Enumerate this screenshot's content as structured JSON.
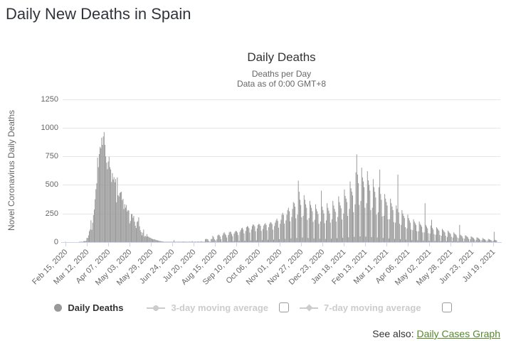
{
  "page": {
    "title": "Daily New Deaths in Spain"
  },
  "chart": {
    "title": "Daily Deaths",
    "subtitle1": "Deaths per Day",
    "subtitle2": "Data as of 0:00 GMT+8",
    "y_axis_title": "Novel Coronavirus Daily Deaths"
  },
  "legend": {
    "daily_deaths_label": "Daily Deaths",
    "ma3_label": "3-day moving average",
    "ma7_label": "7-day moving average",
    "ma3_checked": false,
    "ma7_checked": false
  },
  "see_also": {
    "text": "See also:",
    "link_label": "Daily Cases Graph"
  },
  "colors": {
    "bar": "#9a9a9a",
    "grid": "#e6e6e6",
    "axis": "#ccd6eb",
    "tick_text": "#666666",
    "title_text": "#333333",
    "disabled_legend": "#cccccc",
    "link_green": "#55882b"
  },
  "chart_data": {
    "type": "bar",
    "title": "Daily Deaths",
    "subtitle": "Deaths per Day — Data as of 0:00 GMT+8",
    "xlabel": "",
    "ylabel": "Novel Coronavirus Daily Deaths",
    "ylim": [
      0,
      1250
    ],
    "y_ticks": [
      0,
      250,
      500,
      750,
      1000,
      1250
    ],
    "grid": true,
    "legend_position": "bottom",
    "series_name": "Daily Deaths",
    "start_date": "Feb 15, 2020",
    "end_date": "Jul 23, 2021",
    "x_tick_interval_days": 26,
    "x_tick_labels": [
      "Feb 15, 2020",
      "Mar 12, 2020",
      "Apr 07, 2020",
      "May 03, 2020",
      "May 29, 2020",
      "Jun 24, 2020",
      "Jul 20, 2020",
      "Aug 15, 2020",
      "Sep 10, 2020",
      "Oct 06, 2020",
      "Nov 01, 2020",
      "Nov 27, 2020",
      "Dec 23, 2020",
      "Jan 18, 2021",
      "Feb 13, 2021",
      "Mar 11, 2021",
      "Apr 06, 2021",
      "May 02, 2021",
      "May 28, 2021",
      "Jun 23, 2021",
      "Jul 19, 2021"
    ],
    "values": [
      1,
      0,
      0,
      0,
      0,
      0,
      0,
      0,
      0,
      0,
      0,
      0,
      0,
      0,
      0,
      0,
      0,
      1,
      2,
      1,
      4,
      2,
      7,
      11,
      7,
      12,
      37,
      36,
      59,
      96,
      110,
      191,
      108,
      169,
      236,
      285,
      375,
      462,
      514,
      738,
      655,
      769,
      832,
      821,
      913,
      849,
      923,
      961,
      850,
      749,
      694,
      637,
      704,
      747,
      655,
      634,
      525,
      603,
      547,
      567,
      523,
      551,
      348,
      565,
      410,
      399,
      430,
      435,
      440,
      367,
      378,
      288,
      331,
      301,
      325,
      268,
      281,
      276,
      164,
      185,
      244,
      246,
      213,
      229,
      179,
      143,
      123,
      176,
      184,
      217,
      138,
      104,
      87,
      59,
      83,
      110,
      48,
      56,
      48,
      70,
      50,
      47,
      41,
      38,
      34,
      30,
      27,
      24,
      26,
      22,
      19,
      17,
      15,
      13,
      11,
      10,
      8,
      7,
      5,
      4,
      3,
      2,
      3,
      2,
      1,
      2,
      1,
      3,
      1,
      2,
      1,
      2,
      17,
      1,
      3,
      2,
      1,
      2,
      4,
      1,
      3,
      2,
      1,
      5,
      3,
      2,
      4,
      2,
      1,
      3,
      2,
      4,
      2,
      3,
      9,
      2,
      1,
      3,
      5,
      3,
      2,
      6,
      4,
      2,
      3,
      8,
      4,
      2,
      1,
      3,
      26,
      28,
      27,
      25,
      12,
      1,
      2,
      26,
      27,
      55,
      45,
      26,
      16,
      1,
      24,
      58,
      66,
      61,
      48,
      25,
      3,
      59,
      77,
      86,
      72,
      61,
      40,
      6,
      62,
      85,
      92,
      88,
      70,
      52,
      8,
      75,
      90,
      98,
      95,
      84,
      61,
      10,
      90,
      105,
      120,
      126,
      110,
      76,
      12,
      98,
      130,
      140,
      135,
      122,
      84,
      14,
      110,
      140,
      155,
      150,
      138,
      95,
      16,
      120,
      150,
      160,
      155,
      142,
      98,
      18,
      115,
      145,
      158,
      165,
      150,
      103,
      20,
      130,
      160,
      175,
      170,
      158,
      109,
      22,
      140,
      170,
      190,
      205,
      185,
      126,
      25,
      160,
      195,
      240,
      256,
      238,
      162,
      28,
      190,
      240,
      280,
      300,
      270,
      182,
      32,
      220,
      290,
      350,
      340,
      310,
      208,
      36,
      240,
      537,
      440,
      370,
      325,
      217,
      40,
      230,
      410,
      370,
      330,
      300,
      195,
      36,
      210,
      360,
      325,
      300,
      270,
      178,
      32,
      195,
      330,
      290,
      270,
      245,
      160,
      30,
      180,
      450,
      310,
      280,
      250,
      165,
      28,
      190,
      340,
      300,
      275,
      250,
      170,
      30,
      200,
      360,
      320,
      290,
      265,
      180,
      34,
      220,
      400,
      350,
      320,
      295,
      198,
      38,
      250,
      460,
      404,
      380,
      350,
      230,
      42,
      290,
      530,
      470,
      440,
      408,
      262,
      46,
      330,
      610,
      766,
      590,
      515,
      325,
      50,
      360,
      650,
      565,
      530,
      480,
      300,
      48,
      340,
      620,
      540,
      500,
      450,
      280,
      44,
      300,
      550,
      480,
      440,
      390,
      240,
      40,
      260,
      480,
      633,
      420,
      370,
      225,
      36,
      230,
      420,
      380,
      350,
      320,
      200,
      32,
      200,
      380,
      340,
      310,
      280,
      175,
      28,
      170,
      320,
      290,
      590,
      260,
      160,
      26,
      150,
      280,
      250,
      230,
      210,
      130,
      22,
      120,
      240,
      210,
      190,
      170,
      110,
      18,
      105,
      200,
      180,
      165,
      150,
      95,
      16,
      95,
      180,
      160,
      148,
      135,
      85,
      14,
      85,
      340,
      150,
      135,
      120,
      78,
      12,
      75,
      145,
      195,
      125,
      110,
      70,
      10,
      65,
      130,
      120,
      110,
      100,
      62,
      9,
      55,
      115,
      105,
      95,
      85,
      55,
      8,
      45,
      100,
      90,
      80,
      70,
      46,
      7,
      40,
      85,
      75,
      68,
      60,
      40,
      6,
      35,
      150,
      65,
      58,
      50,
      34,
      5,
      30,
      60,
      55,
      48,
      42,
      28,
      4,
      25,
      50,
      45,
      40,
      35,
      24,
      4,
      20,
      42,
      38,
      33,
      28,
      20,
      3,
      17,
      35,
      30,
      26,
      22,
      16,
      3,
      14,
      28,
      25,
      21,
      18,
      13,
      2,
      12,
      90,
      20,
      17,
      14
    ]
  }
}
